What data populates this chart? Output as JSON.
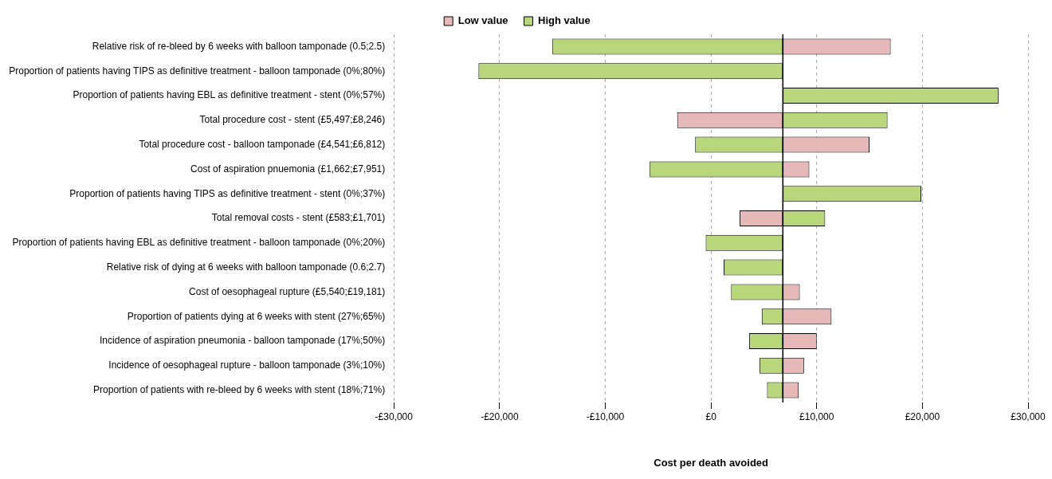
{
  "chart_data": {
    "type": "bar",
    "orientation": "horizontal",
    "xlabel": "Cost per death avoided",
    "categories": [
      "Relative risk of re-bleed by 6 weeks with balloon tamponade (0.5;2.5)",
      "Proportion of patients having TIPS as definitive treatment - balloon tamponade (0%;80%)",
      "Proportion of patients having EBL as definitive treatment - stent (0%;57%)",
      "Total procedure cost - stent (£5,497;£8,246)",
      "Total procedure cost - balloon tamponade (£4,541;£6,812)",
      "Cost of aspiration pnuemonia (£1,662;£7,951)",
      "Proportion of patients having TIPS as definitive treatment - stent (0%;37%)",
      "Total removal costs - stent (£583;£1,701)",
      "Proportion of patients having EBL as definitive treatment - balloon tamponade (0%;20%)",
      "Relative risk of dying at 6 weeks with balloon tamponade (0.6;2.7)",
      "Cost of oesophageal rupture (£5,540;£19,181)",
      "Proportion of patients dying at 6 weeks with stent (27%;65%)",
      "Incidence of aspiration pneumonia - balloon tamponade (17%;50%)",
      "Incidence of oesophageal rupture - balloon tamponade (3%;10%)",
      "Proportion of patients with re-bleed by 6 weeks with stent (18%;71%)"
    ],
    "series": [
      {
        "name": "Low value",
        "color": "#e6b8b7",
        "base": [
          6800,
          null,
          null,
          6800,
          6800,
          6800,
          null,
          6800,
          null,
          null,
          6800,
          6800,
          6800,
          6800,
          6800
        ],
        "values": [
          10200,
          null,
          null,
          -10000,
          8200,
          2500,
          null,
          -4100,
          null,
          null,
          1600,
          4600,
          3200,
          2000,
          1500
        ]
      },
      {
        "name": "High value",
        "color": "#b7d77a",
        "base": [
          6800,
          6800,
          6800,
          6800,
          6800,
          6800,
          6800,
          6800,
          6800,
          6800,
          6800,
          6800,
          6800,
          6800,
          6800
        ],
        "values": [
          -21800,
          -28800,
          20400,
          9900,
          -8300,
          -12600,
          13100,
          4000,
          -7300,
          -5600,
          -4900,
          -2000,
          -3200,
          -2200,
          -1500
        ]
      }
    ],
    "xlim": [
      -30000,
      30000
    ],
    "xticks": [
      {
        "value": -30000,
        "label": "-£30,000"
      },
      {
        "value": -20000,
        "label": "-£20,000"
      },
      {
        "value": -10000,
        "label": "-£10,000"
      },
      {
        "value": 0,
        "label": "£0"
      },
      {
        "value": 10000,
        "label": "£10,000"
      },
      {
        "value": 20000,
        "label": "£20,000"
      },
      {
        "value": 30000,
        "label": "£30,000"
      }
    ],
    "ref_lines": [
      {
        "axis": "x",
        "value": 6800,
        "color": "#000000"
      }
    ],
    "grid": "x",
    "legend": "top"
  }
}
